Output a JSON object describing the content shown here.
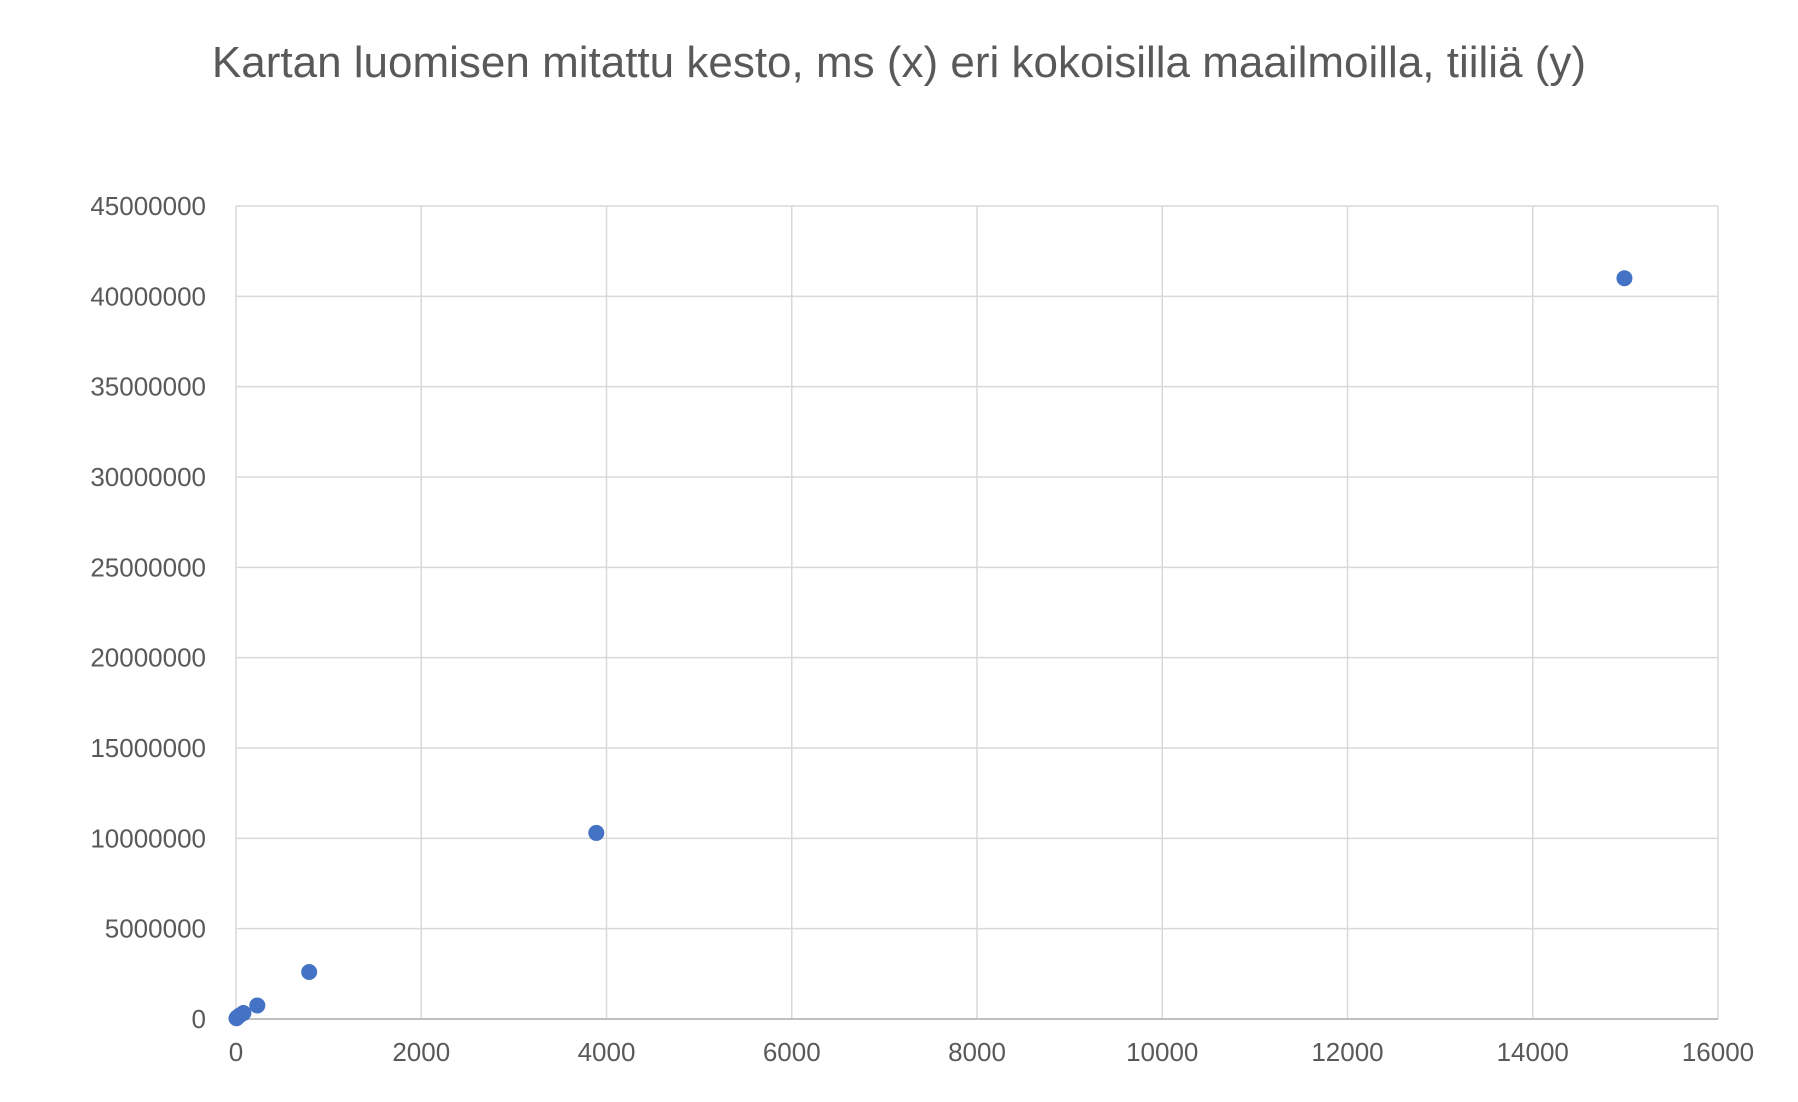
{
  "chart_data": {
    "type": "scatter",
    "title": "Kartan luomisen mitattu kesto, ms (x) eri kokoisilla maailmoilla, tiiliä (y)",
    "xlabel": "",
    "ylabel": "",
    "xlim": [
      0,
      16000
    ],
    "ylim": [
      0,
      45000000
    ],
    "x_ticks": [
      0,
      2000,
      4000,
      6000,
      8000,
      10000,
      12000,
      14000,
      16000
    ],
    "y_ticks": [
      0,
      5000000,
      10000000,
      15000000,
      20000000,
      25000000,
      30000000,
      35000000,
      40000000,
      45000000
    ],
    "grid": true,
    "legend": "none",
    "series": [
      {
        "color": "#4472C4",
        "points": [
          {
            "x": 5,
            "y": 40000
          },
          {
            "x": 15,
            "y": 100000
          },
          {
            "x": 40,
            "y": 200000
          },
          {
            "x": 80,
            "y": 330000
          },
          {
            "x": 230,
            "y": 750000
          },
          {
            "x": 790,
            "y": 2600000
          },
          {
            "x": 3890,
            "y": 10300000
          },
          {
            "x": 14990,
            "y": 41000000
          }
        ]
      }
    ]
  }
}
